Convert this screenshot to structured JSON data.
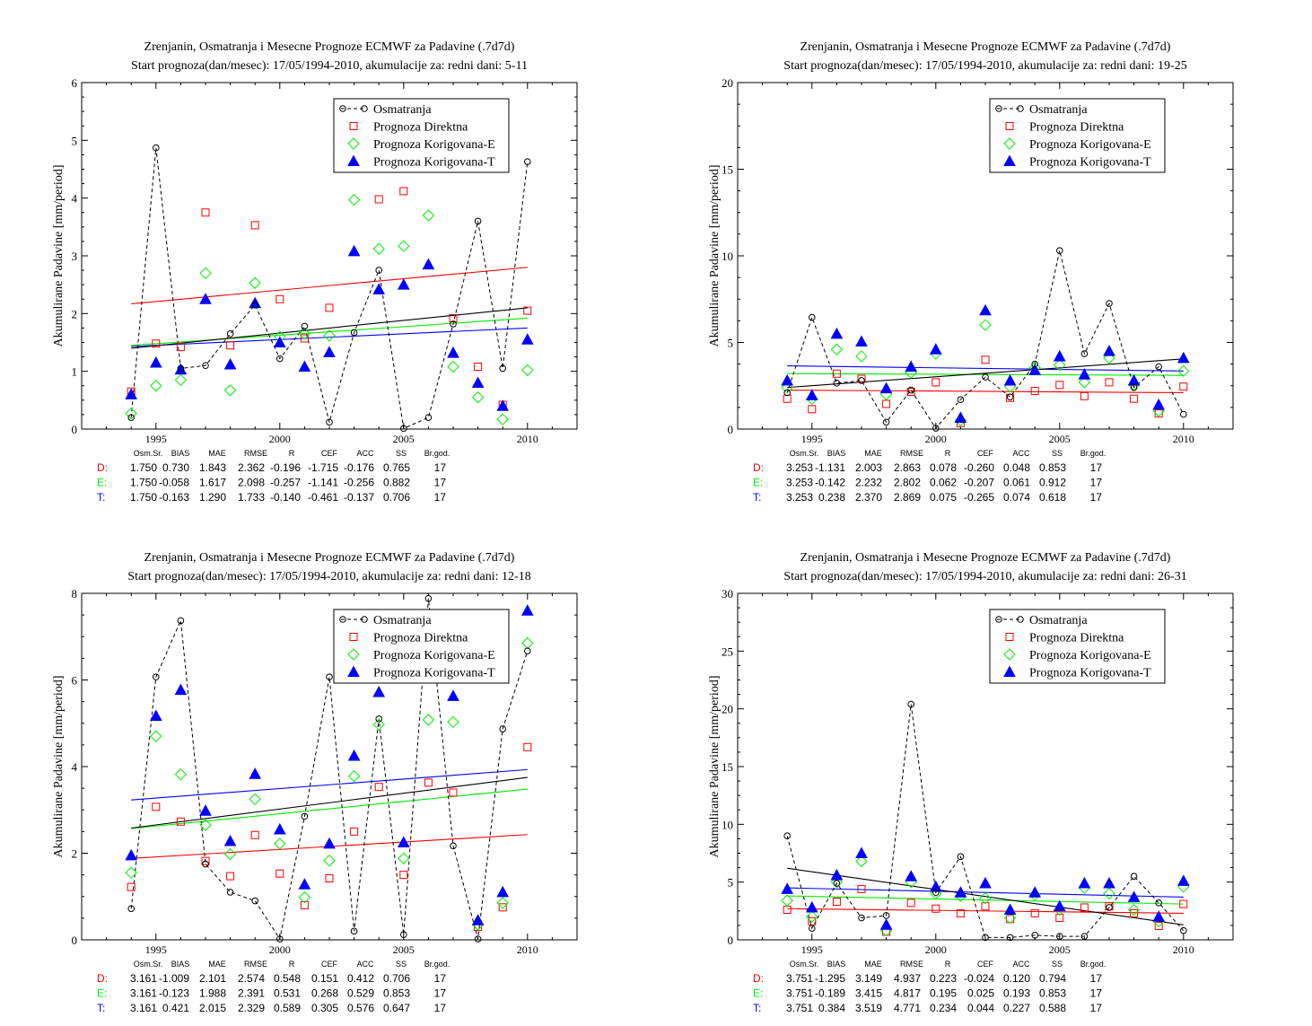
{
  "colors": {
    "obs": "#000000",
    "direct": "#ff0000",
    "corr_e": "#00ee00",
    "corr_t": "#0000ff"
  },
  "legend": {
    "obs": "Osmatranja",
    "direct": "Prognoza Direktna",
    "corr_e": "Prognoza Korigovana-E",
    "corr_t": "Prognoza Korigovana-T"
  },
  "stats_header": [
    "Osm.Sr.",
    "BIAS",
    "MAE",
    "RMSE",
    "R",
    "CEF",
    "ACC",
    "SS",
    "Br.god."
  ],
  "chart_data": [
    {
      "type": "scatter",
      "title": "Zrenjanin, Osmatranja i Mesecne Prognoze ECMWF za Padavine (.7d7d)",
      "subtitle": "Start prognoza(dan/mesec): 17/05/1994-2010, akumulacije za: redni dani: 5-11",
      "ylabel": "Akumulirane Padavine [mm/period]",
      "xlim": [
        1992,
        2012
      ],
      "ylim": [
        0,
        6
      ],
      "yticks": [
        0,
        1,
        2,
        3,
        4,
        5,
        6
      ],
      "xticks": [
        1995,
        2000,
        2005,
        2010
      ],
      "x": [
        1994,
        1995,
        1996,
        1997,
        1998,
        1999,
        2000,
        2001,
        2002,
        2003,
        2004,
        2005,
        2006,
        2007,
        2008,
        2009,
        2010
      ],
      "series": [
        {
          "key": "obs",
          "values": [
            0.2,
            4.87,
            1.05,
            1.1,
            1.65,
            2.15,
            1.22,
            1.78,
            0.12,
            1.67,
            2.75,
            0.01,
            0.2,
            1.82,
            3.6,
            1.05,
            4.63
          ]
        },
        {
          "key": "direct",
          "values": [
            0.65,
            1.48,
            1.42,
            3.75,
            1.45,
            3.53,
            2.25,
            1.57,
            2.1,
            null,
            3.98,
            4.12,
            null,
            1.92,
            1.08,
            0.42,
            2.05
          ]
        },
        {
          "key": "corr_e",
          "values": [
            0.27,
            0.75,
            0.85,
            2.7,
            0.67,
            2.53,
            1.6,
            1.65,
            1.62,
            3.97,
            3.12,
            3.17,
            3.7,
            1.08,
            0.55,
            0.17,
            1.02
          ]
        },
        {
          "key": "corr_t",
          "values": [
            0.6,
            1.15,
            1.03,
            2.25,
            1.12,
            2.18,
            1.5,
            1.08,
            1.33,
            3.08,
            2.42,
            2.5,
            2.85,
            1.32,
            0.8,
            0.4,
            1.55
          ]
        }
      ],
      "trends": {
        "obs": [
          1.4,
          2.1
        ],
        "direct": [
          2.17,
          2.8
        ],
        "corr_e": [
          1.45,
          1.92
        ],
        "corr_t": [
          1.43,
          1.75
        ]
      },
      "stats": {
        "D": [
          "1.750",
          "0.730",
          "1.843",
          "2.362",
          "-0.196",
          "-1.715",
          "-0.176",
          "0.765",
          "17"
        ],
        "E": [
          "1.750",
          "-0.058",
          "1.617",
          "2.098",
          "-0.257",
          "-1.141",
          "-0.256",
          "0.882",
          "17"
        ],
        "T": [
          "1.750",
          "-0.163",
          "1.290",
          "1.733",
          "-0.140",
          "-0.461",
          "-0.137",
          "0.706",
          "17"
        ]
      }
    },
    {
      "type": "scatter",
      "title": "Zrenjanin, Osmatranja i Mesecne Prognoze ECMWF za Padavine (.7d7d)",
      "subtitle": "Start prognoza(dan/mesec): 17/05/1994-2010, akumulacije za: redni dani: 19-25",
      "ylabel": "Akumulirane Padavine [mm/period]",
      "xlim": [
        1992,
        2012
      ],
      "ylim": [
        0,
        20
      ],
      "yticks": [
        0,
        5,
        10,
        15,
        20
      ],
      "xticks": [
        1995,
        2000,
        2005,
        2010
      ],
      "x": [
        1994,
        1995,
        1996,
        1997,
        1998,
        1999,
        2000,
        2001,
        2002,
        2003,
        2004,
        2005,
        2006,
        2007,
        2008,
        2009,
        2010
      ],
      "series": [
        {
          "key": "obs",
          "values": [
            2.1,
            6.45,
            2.65,
            2.8,
            0.4,
            2.25,
            0.05,
            1.7,
            3.0,
            1.85,
            3.75,
            10.3,
            4.35,
            7.25,
            2.4,
            3.6,
            0.85
          ]
        },
        {
          "key": "direct",
          "values": [
            1.75,
            1.15,
            3.2,
            2.9,
            1.45,
            2.15,
            2.7,
            0.35,
            4.0,
            1.8,
            2.2,
            2.55,
            1.9,
            2.7,
            1.75,
            0.9,
            2.45
          ]
        },
        {
          "key": "corr_e",
          "values": [
            2.4,
            1.75,
            4.6,
            4.2,
            2.0,
            3.25,
            4.35,
            0.5,
            6.0,
            2.45,
            3.55,
            3.7,
            2.7,
            4.1,
            2.55,
            1.05,
            3.35
          ]
        },
        {
          "key": "corr_t",
          "values": [
            2.8,
            1.95,
            5.5,
            5.05,
            2.35,
            3.6,
            4.6,
            0.65,
            6.85,
            2.8,
            3.4,
            4.2,
            3.15,
            4.5,
            2.8,
            1.4,
            4.1
          ]
        }
      ],
      "trends": {
        "obs": [
          2.4,
          4.05
        ],
        "direct": [
          2.25,
          2.1
        ],
        "corr_e": [
          3.2,
          3.1
        ],
        "corr_t": [
          3.65,
          3.35
        ]
      },
      "stats": {
        "D": [
          "3.253",
          "-1.131",
          "2.003",
          "2.863",
          "0.078",
          "-0.260",
          "0.048",
          "0.853",
          "17"
        ],
        "E": [
          "3.253",
          "-0.142",
          "2.232",
          "2.802",
          "0.062",
          "-0.207",
          "0.061",
          "0.912",
          "17"
        ],
        "T": [
          "3.253",
          "0.238",
          "2.370",
          "2.869",
          "0.075",
          "-0.265",
          "0.074",
          "0.618",
          "17"
        ]
      }
    },
    {
      "type": "scatter",
      "title": "Zrenjanin, Osmatranja i Mesecne Prognoze ECMWF za Padavine (.7d7d)",
      "subtitle": "Start prognoza(dan/mesec): 17/05/1994-2010, akumulacije za: redni dani: 12-18",
      "ylabel": "Akumulirane Padavine [mm/period]",
      "xlim": [
        1992,
        2012
      ],
      "ylim": [
        0,
        8
      ],
      "yticks": [
        0,
        2,
        4,
        6,
        8
      ],
      "xticks": [
        1995,
        2000,
        2005,
        2010
      ],
      "x": [
        1994,
        1995,
        1996,
        1997,
        1998,
        1999,
        2000,
        2001,
        2002,
        2003,
        2004,
        2005,
        2006,
        2007,
        2008,
        2009,
        2010
      ],
      "series": [
        {
          "key": "obs",
          "values": [
            0.72,
            6.07,
            7.37,
            1.75,
            1.1,
            0.9,
            0.02,
            2.85,
            6.07,
            0.2,
            5.1,
            0.12,
            7.88,
            2.17,
            0.02,
            4.87,
            6.67
          ]
        },
        {
          "key": "direct",
          "values": [
            1.22,
            3.07,
            2.73,
            1.82,
            1.47,
            2.42,
            1.53,
            0.8,
            1.42,
            2.5,
            3.53,
            1.5,
            3.63,
            3.4,
            0.3,
            0.75,
            4.45
          ]
        },
        {
          "key": "corr_e",
          "values": [
            1.55,
            4.7,
            3.82,
            2.65,
            1.98,
            3.25,
            2.22,
            0.98,
            1.83,
            3.78,
            4.97,
            1.88,
            5.08,
            5.03,
            0.35,
            0.85,
            6.85
          ]
        },
        {
          "key": "corr_t",
          "values": [
            1.95,
            5.17,
            5.77,
            2.98,
            2.28,
            3.83,
            2.55,
            1.28,
            2.22,
            4.25,
            5.72,
            2.25,
            null,
            5.63,
            0.45,
            1.1,
            7.6
          ]
        }
      ],
      "trends": {
        "obs": [
          2.58,
          3.75
        ],
        "direct": [
          1.88,
          2.43
        ],
        "corr_e": [
          2.57,
          3.48
        ],
        "corr_t": [
          3.23,
          3.93
        ]
      },
      "stats": {
        "D": [
          "3.161",
          "-1.009",
          "2.101",
          "2.574",
          "0.548",
          "0.151",
          "0.412",
          "0.706",
          "17"
        ],
        "E": [
          "3.161",
          "-0.123",
          "1.988",
          "2.391",
          "0.531",
          "0.268",
          "0.529",
          "0.853",
          "17"
        ],
        "T": [
          "3.161",
          "0.421",
          "2.015",
          "2.329",
          "0.589",
          "0.305",
          "0.576",
          "0.647",
          "17"
        ]
      }
    },
    {
      "type": "scatter",
      "title": "Zrenjanin, Osmatranja i Mesecne Prognoze ECMWF za Padavine (.7d7d)",
      "subtitle": "Start prognoza(dan/mesec): 17/05/1994-2010, akumulacije za: redni dani: 26-31",
      "ylabel": "Akumulirane Padavine [mm/period]",
      "xlim": [
        1992,
        2012
      ],
      "ylim": [
        0,
        30
      ],
      "yticks": [
        0,
        5,
        10,
        15,
        20,
        25,
        30
      ],
      "xticks": [
        1995,
        2000,
        2005,
        2010
      ],
      "x": [
        1994,
        1995,
        1996,
        1997,
        1998,
        1999,
        2000,
        2001,
        2002,
        2003,
        2004,
        2005,
        2006,
        2007,
        2008,
        2009,
        2010
      ],
      "series": [
        {
          "key": "obs",
          "values": [
            9.0,
            1.0,
            4.9,
            1.9,
            2.1,
            20.4,
            4.1,
            7.2,
            0.2,
            0.2,
            0.4,
            0.3,
            0.3,
            2.8,
            5.5,
            3.2,
            0.8
          ]
        },
        {
          "key": "direct",
          "values": [
            2.6,
            1.6,
            3.3,
            4.4,
            0.7,
            3.2,
            2.7,
            2.3,
            2.9,
            1.8,
            2.3,
            1.9,
            2.8,
            2.9,
            2.3,
            1.2,
            3.1
          ]
        },
        {
          "key": "corr_e",
          "values": [
            3.4,
            2.0,
            5.0,
            6.8,
            0.8,
            5.0,
            4.0,
            3.8,
            3.6,
            1.9,
            3.9,
            2.6,
            4.5,
            4.0,
            2.6,
            1.6,
            4.6
          ]
        },
        {
          "key": "corr_t",
          "values": [
            4.4,
            2.8,
            5.6,
            7.5,
            1.3,
            5.5,
            4.6,
            4.1,
            4.9,
            2.6,
            4.1,
            2.9,
            4.9,
            4.9,
            3.7,
            2.0,
            5.1
          ]
        }
      ],
      "trends": {
        "obs": [
          6.2,
          1.3
        ],
        "direct": [
          2.7,
          2.3
        ],
        "corr_e": [
          3.8,
          3.1
        ],
        "corr_t": [
          4.5,
          3.7
        ]
      },
      "stats": {
        "D": [
          "3.751",
          "-1.295",
          "3.149",
          "4.937",
          "0.223",
          "-0.024",
          "0.120",
          "0.794",
          "17"
        ],
        "E": [
          "3.751",
          "-0.189",
          "3.415",
          "4.817",
          "0.195",
          "0.025",
          "0.193",
          "0.853",
          "17"
        ],
        "T": [
          "3.751",
          "0.384",
          "3.519",
          "4.771",
          "0.234",
          "0.044",
          "0.227",
          "0.588",
          "17"
        ]
      }
    }
  ]
}
